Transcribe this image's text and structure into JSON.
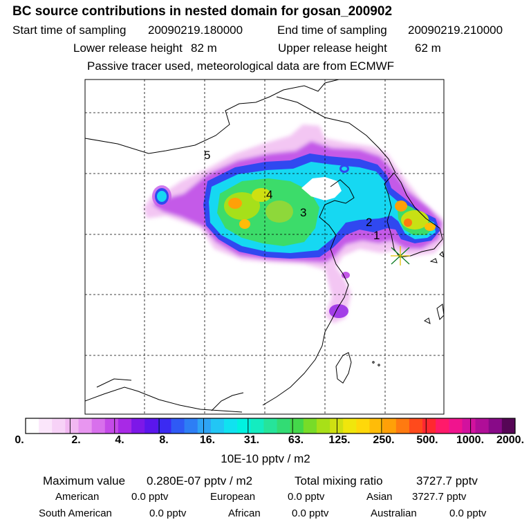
{
  "header": {
    "title": "BC  source contributions in nested domain for gosan_200902",
    "start_label": "Start time of sampling",
    "start_value": "20090219.180000",
    "end_label": "End time of sampling",
    "end_value": "20090219.210000",
    "lower_label": "Lower release height",
    "lower_value": "82 m",
    "upper_label": "Upper release height",
    "upper_value": "62 m",
    "note": "Passive tracer used, meteorological data are from ECMWF"
  },
  "map": {
    "region_labels": [
      "1",
      "2",
      "3",
      "4",
      "5"
    ],
    "receptor_marker": "receptor-star"
  },
  "colorbar": {
    "labels": [
      "0.",
      "2.",
      "4.",
      "8.",
      "16.",
      "31.",
      "63.",
      "125.",
      "250.",
      "500.",
      "1000.",
      "2000."
    ],
    "colors": [
      "#ffffff",
      "#fbe6fb",
      "#f7d2f7",
      "#f2b8f2",
      "#e896f0",
      "#d870ec",
      "#c44ae8",
      "#a829e6",
      "#7d18e8",
      "#5b16ec",
      "#3b2af2",
      "#2f5af5",
      "#2d7ef5",
      "#2ea4f5",
      "#22c6f5",
      "#10e2f0",
      "#00f2e0",
      "#14ecc0",
      "#26e49a",
      "#32dc74",
      "#44d84a",
      "#78dc28",
      "#a8e018",
      "#cfe012",
      "#f0e60c",
      "#ffd80a",
      "#ffbc08",
      "#ffa008",
      "#ff7a10",
      "#ff4a1c",
      "#ff2830",
      "#ff1a6a",
      "#f0148e",
      "#d2129e",
      "#b00e98",
      "#880a88",
      "#560656"
    ],
    "units": "10E-10 pptv / m2"
  },
  "stats": {
    "max_label": "Maximum value",
    "max_value": "0.280E-07 pptv / m2",
    "total_label": "Total mixing ratio",
    "total_value": "3727.7 pptv",
    "american_label": "American",
    "american_value": "0.0 pptv",
    "european_label": "European",
    "european_value": "0.0 pptv",
    "asian_label": "Asian",
    "asian_value": "3727.7 pptv",
    "southamerican_label": "South American",
    "southamerican_value": "0.0 pptv",
    "african_label": "African",
    "african_value": "0.0 pptv",
    "australian_label": "Australian",
    "australian_value": "0.0 pptv"
  }
}
